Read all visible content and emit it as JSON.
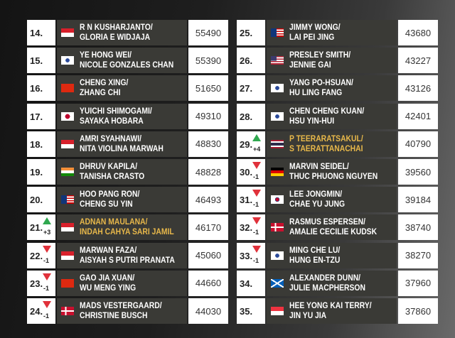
{
  "colors": {
    "highlight": "#e8b84a",
    "up": "#2fa84f",
    "down": "#e0313b",
    "panel": "#3a3a36"
  },
  "left": [
    {
      "rank": "14.",
      "flag": "indonesia-flag",
      "p1": "R N KUSHARJANTO/",
      "p2": "GLORIA E WIDJAJA",
      "points": "55490"
    },
    {
      "rank": "15.",
      "flag": "chinese-taipei-flag",
      "p1": "YE HONG WEI/",
      "p2": "NICOLE GONZALES CHAN",
      "points": "55390"
    },
    {
      "rank": "16.",
      "flag": "china-flag",
      "p1": "CHENG XING/",
      "p2": "ZHANG CHI",
      "points": "51650"
    },
    {
      "rank": "17.",
      "flag": "japan-flag",
      "p1": "YUICHI SHIMOGAMI/",
      "p2": "SAYAKA HOBARA",
      "points": "49310"
    },
    {
      "rank": "18.",
      "flag": "indonesia-flag",
      "p1": "AMRI SYAHNAWI/",
      "p2": "NITA VIOLINA MARWAH",
      "points": "48830"
    },
    {
      "rank": "19.",
      "flag": "india-flag",
      "p1": "DHRUV KAPILA/",
      "p2": "TANISHA CRASTO",
      "points": "48828"
    },
    {
      "rank": "20.",
      "flag": "malaysia-flag",
      "p1": "HOO PANG RON/",
      "p2": "CHENG SU YIN",
      "points": "46493"
    },
    {
      "rank": "21.",
      "change": "+3",
      "dir": "up",
      "highlight": true,
      "flag": "indonesia-flag",
      "p1": "ADNAN MAULANA/",
      "p2": "INDAH CAHYA SARI JAMIL",
      "points": "46170"
    },
    {
      "rank": "22.",
      "change": "-1",
      "dir": "down",
      "flag": "indonesia-flag",
      "p1": "MARWAN FAZA/",
      "p2": "AISYAH S PUTRI PRANATA",
      "points": "45060"
    },
    {
      "rank": "23.",
      "change": "-1",
      "dir": "down",
      "flag": "china-flag",
      "p1": "GAO JIA XUAN/",
      "p2": "WU MENG YING",
      "points": "44660"
    },
    {
      "rank": "24.",
      "change": "-1",
      "dir": "down",
      "flag": "denmark-flag",
      "p1": "MADS VESTERGAARD/",
      "p2": "CHRISTINE BUSCH",
      "points": "44030"
    }
  ],
  "right": [
    {
      "rank": "25.",
      "flag": "malaysia-flag",
      "p1": "JIMMY WONG/",
      "p2": "LAI PEI JING",
      "points": "43680"
    },
    {
      "rank": "26.",
      "flag": "usa-flag",
      "p1": "PRESLEY SMITH/",
      "p2": "JENNIE GAI",
      "points": "43227"
    },
    {
      "rank": "27.",
      "flag": "chinese-taipei-flag",
      "p1": "YANG PO-HSUAN/",
      "p2": "HU LING FANG",
      "points": "43126"
    },
    {
      "rank": "28.",
      "flag": "chinese-taipei-flag",
      "p1": "CHEN CHENG KUAN/",
      "p2": "HSU YIN-HUI",
      "points": "42401"
    },
    {
      "rank": "29.",
      "change": "+4",
      "dir": "up",
      "highlight": true,
      "flag": "thailand-flag",
      "p1": "P TEERARATSAKUL/",
      "p2": "S TAERATTANACHAI",
      "points": "40790"
    },
    {
      "rank": "30.",
      "change": "-1",
      "dir": "down",
      "flag": "germany-flag",
      "p1": "MARVIN SEIDEL/",
      "p2": "THUC PHUONG NGUYEN",
      "points": "39560"
    },
    {
      "rank": "31.",
      "change": "-1",
      "dir": "down",
      "flag": "korea-flag",
      "p1": "LEE JONGMIN/",
      "p2": "CHAE YU JUNG",
      "points": "39184"
    },
    {
      "rank": "32.",
      "change": "-1",
      "dir": "down",
      "flag": "denmark-flag",
      "p1": "RASMUS ESPERSEN/",
      "p2": "AMALIE CECILIE KUDSK",
      "points": "38740"
    },
    {
      "rank": "33.",
      "change": "-1",
      "dir": "down",
      "flag": "chinese-taipei-flag",
      "p1": "MING CHE LU/",
      "p2": "HUNG EN-TZU",
      "points": "38270"
    },
    {
      "rank": "34.",
      "flag": "scotland-flag",
      "p1": "ALEXANDER DUNN/",
      "p2": "JULIE MACPHERSON",
      "points": "37960"
    },
    {
      "rank": "35.",
      "flag": "singapore-flag",
      "p1": "HEE YONG KAI TERRY/",
      "p2": "JIN YU JIA",
      "points": "37860"
    }
  ]
}
